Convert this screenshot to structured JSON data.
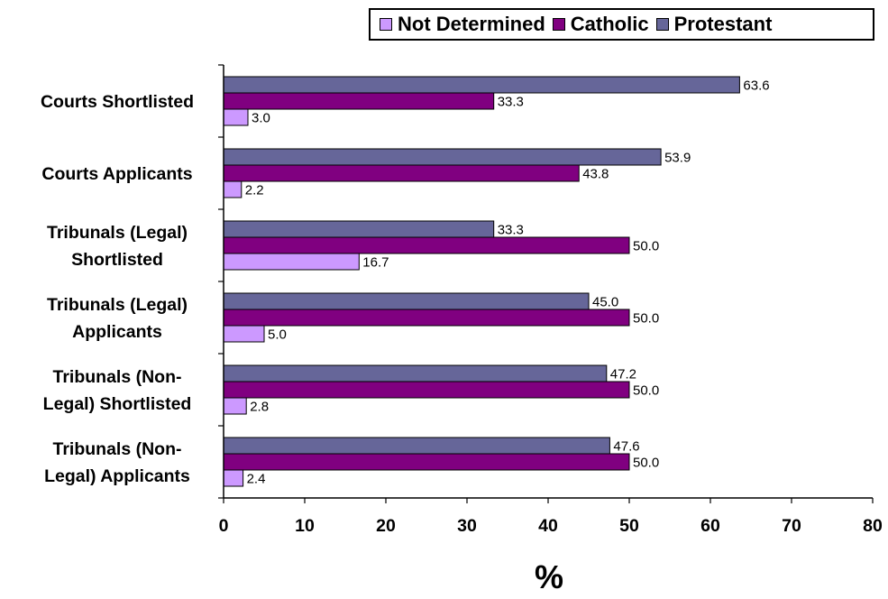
{
  "chart_data": {
    "type": "bar",
    "orientation": "horizontal",
    "categories": [
      [
        "Courts Shortlisted"
      ],
      [
        "Courts Applicants"
      ],
      [
        "Tribunals (Legal)",
        "Shortlisted"
      ],
      [
        "Tribunals (Legal)",
        "Applicants"
      ],
      [
        "Tribunals (Non-",
        "Legal) Shortlisted"
      ],
      [
        "Tribunals (Non-",
        "Legal) Applicants"
      ]
    ],
    "series": [
      {
        "name": "Protestant",
        "color": "#666699",
        "values": [
          63.6,
          53.9,
          33.3,
          45.0,
          47.2,
          47.6
        ]
      },
      {
        "name": "Catholic",
        "color": "#800080",
        "values": [
          33.3,
          43.8,
          50.0,
          50.0,
          50.0,
          50.0
        ]
      },
      {
        "name": "Not Determined",
        "color": "#cc99ff",
        "values": [
          3.0,
          2.2,
          16.7,
          5.0,
          2.8,
          2.4
        ]
      }
    ],
    "legend_order": [
      "Not Determined",
      "Catholic",
      "Protestant"
    ],
    "legend_position": "top-right",
    "xlabel": "%",
    "xlim": [
      0,
      80
    ],
    "xticks": [
      0,
      10,
      20,
      30,
      40,
      50,
      60,
      70,
      80
    ],
    "grid": false
  }
}
